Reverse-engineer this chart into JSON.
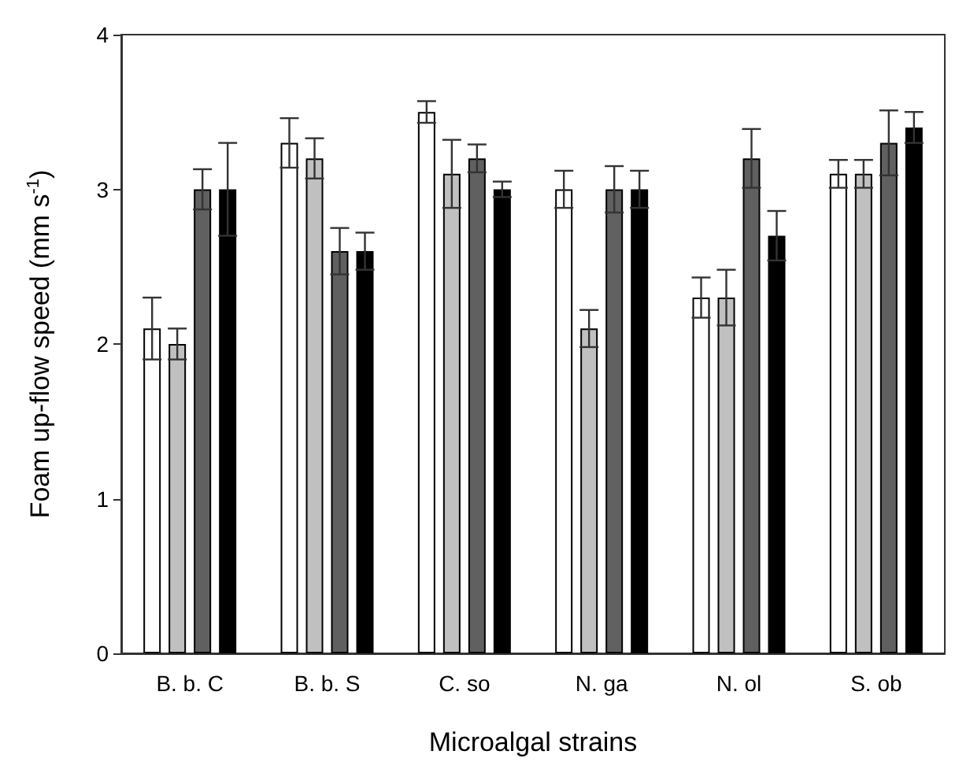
{
  "chart_data": {
    "type": "bar",
    "xlabel": "Microalgal strains",
    "ylabel": "Foam up-flow speed (mm s$^{-1}$)",
    "categories": [
      "B. b. C",
      "B. b. S",
      "C. so",
      "N. ga",
      "N. ol",
      "S. ob"
    ],
    "series": [
      {
        "color": "#ffffff",
        "values": [
          2.1,
          3.3,
          3.5,
          3.0,
          2.3,
          3.1
        ],
        "errors": [
          0.2,
          0.16,
          0.07,
          0.12,
          0.13,
          0.09
        ]
      },
      {
        "color": "#c0c0c0",
        "values": [
          2.0,
          3.2,
          3.1,
          2.1,
          2.3,
          3.1
        ],
        "errors": [
          0.1,
          0.13,
          0.22,
          0.12,
          0.18,
          0.09
        ]
      },
      {
        "color": "#606060",
        "values": [
          3.0,
          2.6,
          3.2,
          3.0,
          3.2,
          3.3
        ],
        "errors": [
          0.13,
          0.15,
          0.09,
          0.15,
          0.19,
          0.21
        ]
      },
      {
        "color": "#000000",
        "values": [
          3.0,
          2.6,
          3.0,
          3.0,
          2.7,
          3.4
        ],
        "errors": [
          0.3,
          0.12,
          0.05,
          0.12,
          0.16,
          0.1
        ]
      }
    ],
    "ylim": [
      0,
      4
    ],
    "yticks": [
      0,
      1,
      2,
      3,
      4
    ],
    "grid": false
  }
}
